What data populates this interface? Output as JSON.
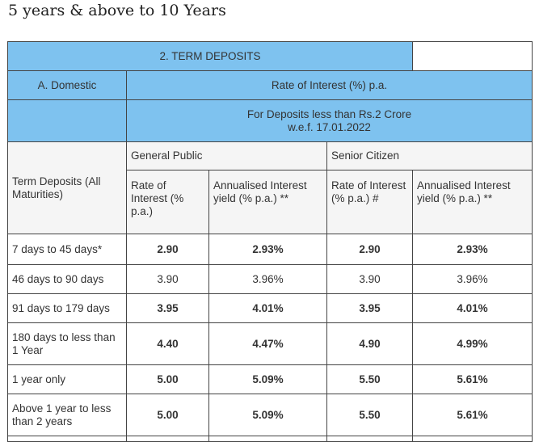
{
  "heading": "5 years & above to 10 Years",
  "table": {
    "section_title": "2. TERM DEPOSITS",
    "domestic_label": "A. Domestic",
    "rate_header": "Rate of Interest (%) p.a.",
    "deposit_note_line1": "For Deposits less than Rs.2 Crore",
    "deposit_note_line2": "w.e.f. 17.01.2022",
    "term_header": "Term Deposits (All Maturities)",
    "general_public": "General Public",
    "senior_citizen": "Senior Citizen",
    "gp_rate_header": "Rate of Interest (% p.a.)",
    "gp_yield_header": "Annualised Interest yield (% p.a.) **",
    "sc_rate_header": "Rate of Interest (% p.a.) #",
    "sc_yield_header": "Annualised Interest yield (% p.a.) **",
    "rows": [
      {
        "term": "7 days to 45 days*",
        "gp_rate": "2.90",
        "gp_yield": "2.93%",
        "sc_rate": "2.90",
        "sc_yield": "2.93%"
      },
      {
        "term": "46 days to 90 days",
        "gp_rate": "3.90",
        "gp_yield": "3.96%",
        "sc_rate": "3.90",
        "sc_yield": "3.96%"
      },
      {
        "term": "91 days to 179 days",
        "gp_rate": "3.95",
        "gp_yield": "4.01%",
        "sc_rate": "3.95",
        "sc_yield": "4.01%"
      },
      {
        "term": "180 days to less than 1 Year",
        "gp_rate": "4.40",
        "gp_yield": "4.47%",
        "sc_rate": "4.90",
        "sc_yield": "4.99%"
      },
      {
        "term": "1 year only",
        "gp_rate": "5.00",
        "gp_yield": "5.09%",
        "sc_rate": "5.50",
        "sc_yield": "5.61%"
      },
      {
        "term": "Above 1 year to less than 2 years",
        "gp_rate": "5.00",
        "gp_yield": "5.09%",
        "sc_rate": "5.50",
        "sc_yield": "5.61%"
      }
    ]
  },
  "colors": {
    "header_blue": "#7ec2ef",
    "border": "#444444",
    "subheader_bg": "#f5f5f5"
  }
}
